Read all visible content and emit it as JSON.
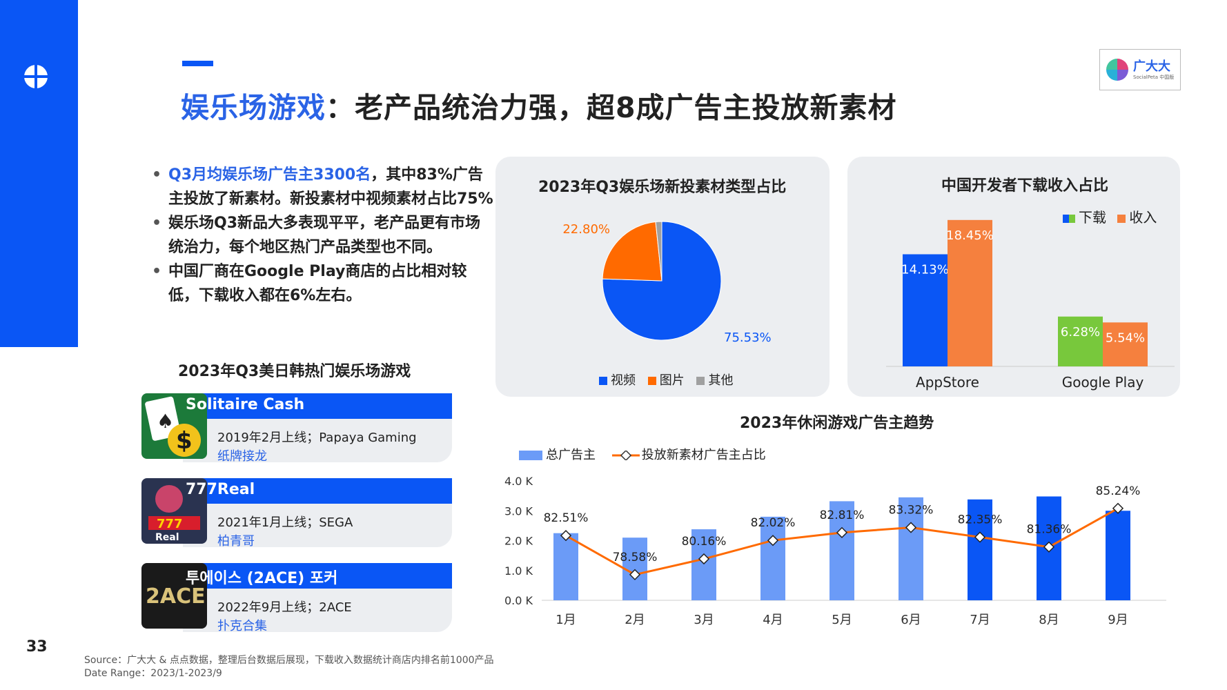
{
  "page": {
    "title_highlight": "娱乐场游戏",
    "title_rest": "：老产品统治力强，超8成广告主投放新素材",
    "brand_name": "广大大",
    "brand_sub": "SocialPeta 中国版",
    "page_number": "33",
    "source_line1": "Source：广大大 & 点点数据，整理后台数据后展现，下载收入数据统计商店内排名前1000产品",
    "source_line2": "Date Range：2023/1-2023/9"
  },
  "bullets": [
    {
      "highlight": "Q3月均娱乐场广告主3300名",
      "rest": "，其中83%广告主投放了新素材。新投素材中视频素材占比75%"
    },
    {
      "highlight": "",
      "rest": "娱乐场Q3新品大多表现平平，老产品更有市场统治力，每个地区热门产品类型也不同。"
    },
    {
      "highlight": "",
      "rest": "中国厂商在Google Play商店的占比相对较低，下载收入都在6%左右。"
    }
  ],
  "games_heading": "2023年Q3美日韩热门娱乐场游戏",
  "games": [
    {
      "name": "Solitaire Cash",
      "meta": "2019年2月上线；Papaya Gaming",
      "genre": "纸牌接龙",
      "icon": "solitaire-cash-icon"
    },
    {
      "name": "777Real",
      "meta": "2021年1月上线；SEGA",
      "genre": "柏青哥",
      "icon": "777real-icon"
    },
    {
      "name": "투에이스 (2ACE) 포커",
      "meta": "2022年9月上线；2ACE",
      "genre": "扑克合集",
      "icon": "2ace-icon"
    }
  ],
  "colors": {
    "blue": "#0a56f5",
    "light_blue": "#6b9bf7",
    "orange": "#ff6a00",
    "bar_orange": "#f5803e",
    "green": "#78c83c",
    "gray": "#a0a0a0"
  },
  "chart_data": [
    {
      "type": "pie",
      "title": "2023年Q3娱乐场新投素材类型占比",
      "slices": [
        {
          "name": "视频",
          "value": 75.53,
          "label": "75.53%"
        },
        {
          "name": "图片",
          "value": 22.8,
          "label": "22.80%"
        },
        {
          "name": "其他",
          "value": 1.67,
          "label": ""
        }
      ]
    },
    {
      "type": "bar",
      "title": "中国开发者下载收入占比",
      "categories": [
        "AppStore",
        "Google Play"
      ],
      "series": [
        {
          "name": "下载",
          "values": [
            14.13,
            6.28
          ],
          "labels": [
            "14.13%",
            "6.28%"
          ]
        },
        {
          "name": "收入",
          "values": [
            18.45,
            5.54
          ],
          "labels": [
            "18.45%",
            "5.54%"
          ]
        }
      ],
      "legend_position": "top-right"
    },
    {
      "type": "bar",
      "title": "2023年休闲游戏广告主趋势",
      "categories": [
        "1月",
        "2月",
        "3月",
        "4月",
        "5月",
        "6月",
        "7月",
        "8月",
        "9月"
      ],
      "series": [
        {
          "name": "总广告主",
          "values": [
            2250,
            2100,
            2380,
            2800,
            3320,
            3450,
            3380,
            3480,
            3000
          ]
        },
        {
          "name": "投放新素材广告主占比",
          "values": [
            82.51,
            78.58,
            80.16,
            82.02,
            82.81,
            83.32,
            82.35,
            81.36,
            85.24
          ],
          "labels": [
            "82.51%",
            "78.58%",
            "80.16%",
            "82.02%",
            "82.81%",
            "83.32%",
            "82.35%",
            "81.36%",
            "85.24%"
          ]
        }
      ],
      "yticks": [
        "0.0 K",
        "1.0 K",
        "2.0 K",
        "3.0 K",
        "4.0 K"
      ],
      "ylim": [
        0,
        4000
      ],
      "legend_position": "top-left"
    }
  ]
}
